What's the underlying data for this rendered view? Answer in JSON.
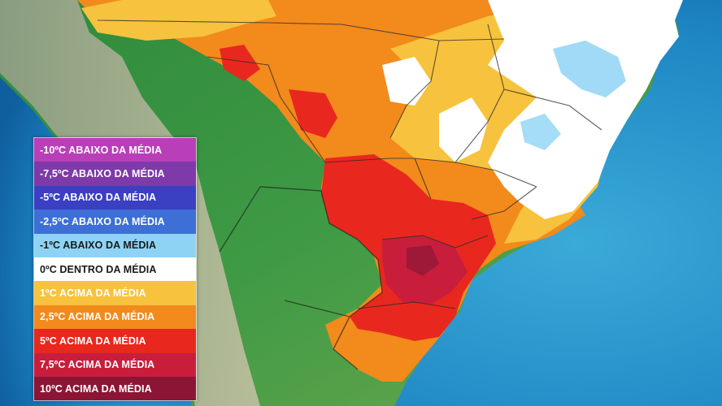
{
  "legend": {
    "items": [
      {
        "label": "-10ºC ABAIXO DA MÉDIA",
        "color": "#b93fb8",
        "text_color": "#ffffff"
      },
      {
        "label": "-7,5ºC ABAIXO DA MÉDIA",
        "color": "#7d3aa8",
        "text_color": "#ffffff"
      },
      {
        "label": "-5ºC ABAIXO DA MÉDIA",
        "color": "#3b3fc2",
        "text_color": "#ffffff"
      },
      {
        "label": "-2,5ºC ABAIXO DA MÉDIA",
        "color": "#3d6fd6",
        "text_color": "#ffffff"
      },
      {
        "label": "-1ºC ABAIXO DA MÉDIA",
        "color": "#8fd3f4",
        "text_color": "#1a1a1a"
      },
      {
        "label": "0ºC DENTRO DA MÉDIA",
        "color": "#ffffff",
        "text_color": "#1a1a1a"
      },
      {
        "label": "1ºC ACIMA DA MÉDIA",
        "color": "#f7c23d",
        "text_color": "#ffffff"
      },
      {
        "label": "2,5ºC ACIMA DA MÉDIA",
        "color": "#f28a1c",
        "text_color": "#ffffff"
      },
      {
        "label": "5ºC ACIMA DA MÉDIA",
        "color": "#e8281e",
        "text_color": "#ffffff"
      },
      {
        "label": "7,5ºC ACIMA DA MÉDIA",
        "color": "#c81e3c",
        "text_color": "#ffffff"
      },
      {
        "label": "10ºC ACIMA DA MÉDIA",
        "color": "#8c1535",
        "text_color": "#ffffff"
      }
    ]
  }
}
